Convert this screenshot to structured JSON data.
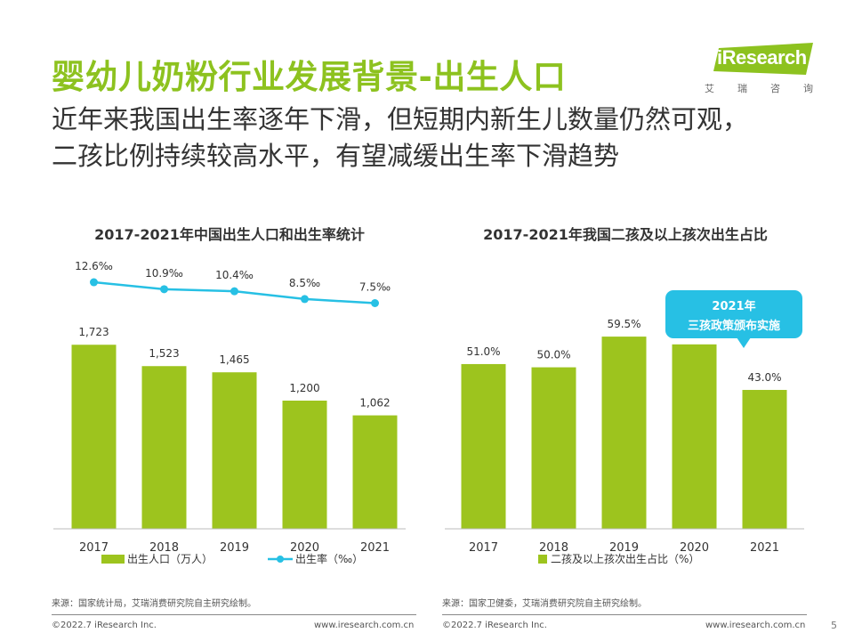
{
  "header": {
    "title": "婴幼儿奶粉行业发展背景-出生人口",
    "subtitle_line1": "近年来我国出生率逐年下滑，但短期内新生儿数量仍然可观，",
    "subtitle_line2": "二孩比例持续较高水平，有望减缓出生率下滑趋势"
  },
  "logo": {
    "brand": "iResearch",
    "cn_chars": [
      "艾",
      "瑞",
      "咨",
      "询"
    ],
    "accent_color": "#8dc21f"
  },
  "chart_data": [
    {
      "type": "bar",
      "title": "2017-2021年中国出生人口和出生率统计",
      "categories": [
        "2017",
        "2018",
        "2019",
        "2020",
        "2021"
      ],
      "series": [
        {
          "name": "出生人口（万人）",
          "type": "bar",
          "values": [
            1723,
            1523,
            1465,
            1200,
            1062
          ],
          "labels": [
            "1,723",
            "1,523",
            "1,465",
            "1,200",
            "1,062"
          ],
          "color": "#9dc41e"
        },
        {
          "name": "出生率（‰）",
          "type": "line",
          "values": [
            12.6,
            10.9,
            10.4,
            8.5,
            7.5
          ],
          "labels": [
            "12.6‰",
            "10.9‰",
            "10.4‰",
            "8.5‰",
            "7.5‰"
          ],
          "color": "#27c0e4"
        }
      ],
      "bar_ylim": [
        0,
        2000
      ],
      "line_ylim": [
        0,
        14
      ],
      "grid": false,
      "legend_position": "bottom"
    },
    {
      "type": "bar",
      "title": "2017-2021年我国二孩及以上孩次出生占比",
      "categories": [
        "2017",
        "2018",
        "2019",
        "2020",
        "2021"
      ],
      "series": [
        {
          "name": "二孩及以上孩次出生占比（%）",
          "type": "bar",
          "values": [
            51.0,
            50.0,
            59.5,
            57.1,
            43.0
          ],
          "labels": [
            "51.0%",
            "50.0%",
            "59.5%",
            "57.1%",
            "43.0%"
          ],
          "color": "#9dc41e"
        }
      ],
      "ylim": [
        0,
        70
      ],
      "grid": false,
      "legend_position": "bottom",
      "annotation": {
        "line1": "2021年",
        "line2": "三孩政策颁布实施",
        "color": "#27c0e4"
      }
    }
  ],
  "footer": {
    "source_left": "来源：国家统计局，艾瑞消费研究院自主研究绘制。",
    "source_right": "来源：国家卫健委，艾瑞消费研究院自主研究绘制。",
    "copyright_left": "©2022.7 iResearch Inc.",
    "url_left": "www.iresearch.com.cn",
    "copyright_right": "©2022.7 iResearch Inc.",
    "url_right": "www.iresearch.com.cn",
    "page_number": "5"
  }
}
